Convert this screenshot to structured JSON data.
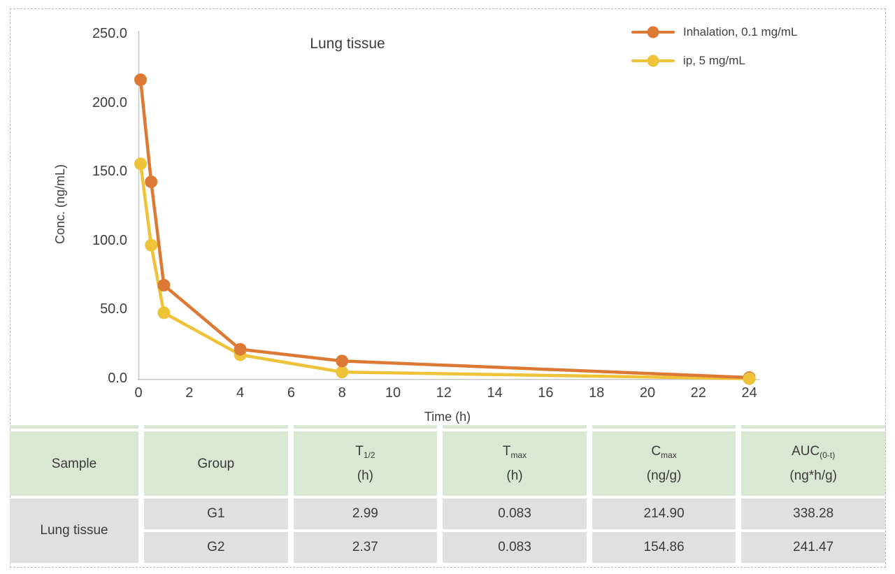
{
  "frame": {
    "border_color": "#b9b9b9"
  },
  "chart_data": {
    "type": "line",
    "title": "Lung tissue",
    "xlabel": "Time (h)",
    "ylabel": "Conc. (ng/mL)",
    "x": [
      0.083,
      0.5,
      1,
      4,
      8,
      24
    ],
    "series": [
      {
        "name": "Inhalation, 0.1 mg/mL",
        "color": "#dc7935",
        "values": [
          217,
          143,
          68,
          21.5,
          13,
          1
        ]
      },
      {
        "name": "ip, 5 mg/mL",
        "color": "#eec239",
        "values": [
          156,
          97,
          48,
          17.5,
          5,
          0.2
        ]
      }
    ],
    "xlim": [
      0,
      24.5
    ],
    "ylim": [
      0,
      250
    ],
    "x_ticks": [
      0,
      2,
      4,
      6,
      8,
      10,
      12,
      14,
      16,
      18,
      20,
      22,
      24
    ],
    "y_ticks": [
      {
        "v": 250,
        "label": "250.0"
      },
      {
        "v": 200,
        "label": "200.0"
      },
      {
        "v": 150,
        "label": "150.0"
      },
      {
        "v": 100,
        "label": "100.0"
      },
      {
        "v": 50,
        "label": "50.0"
      },
      {
        "v": 0,
        "label": "0.0"
      }
    ],
    "grid": false,
    "legend_position": "top-right",
    "axis_color": "#c7c7c7"
  },
  "table": {
    "colors": {
      "header_bg": "#d9e8d2",
      "body_bg": "#e0e0e0"
    },
    "headers": [
      {
        "key": "sample",
        "label": "Sample"
      },
      {
        "key": "group",
        "label": "Group"
      },
      {
        "key": "t-half",
        "label": "T",
        "sub": "1/2",
        "unit": "(h)"
      },
      {
        "key": "t-max",
        "label": "T",
        "sub": "max",
        "unit": "(h)"
      },
      {
        "key": "c-max",
        "label": "C",
        "sub": "max",
        "unit": "(ng/g)"
      },
      {
        "key": "auc",
        "label": "AUC",
        "sub": "(0-t)",
        "unit": "(ng*h/g)"
      }
    ],
    "sample_label": "Lung tissue",
    "rows": [
      {
        "group": "G1",
        "values": [
          "2.99",
          "0.083",
          "214.90",
          "338.28"
        ]
      },
      {
        "group": "G2",
        "values": [
          "2.37",
          "0.083",
          "154.86",
          "241.47"
        ]
      }
    ]
  }
}
